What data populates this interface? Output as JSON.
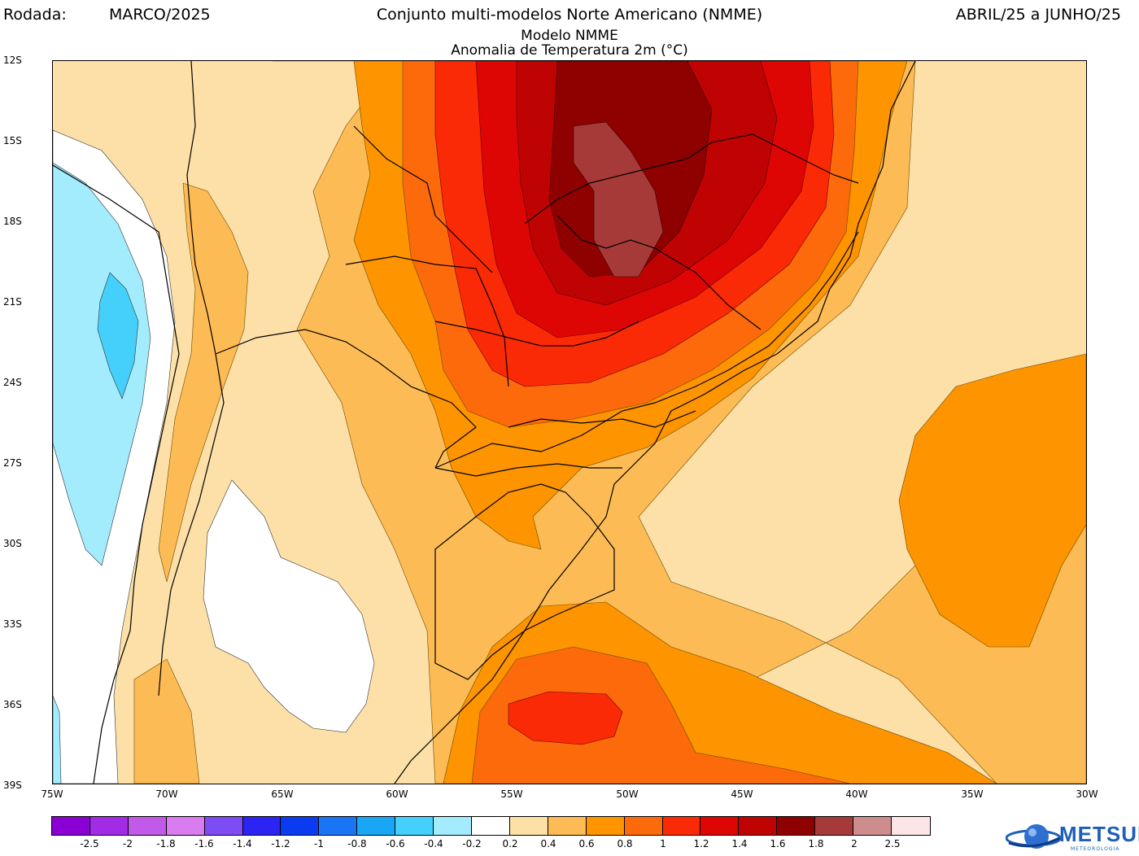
{
  "header": {
    "rodada_label": "Rodada:",
    "rodada_value": "MARCO/2025",
    "title": "Conjunto multi-modelos Norte Americano (NMME)",
    "period": "ABRIL/25 a JUNHO/25",
    "model": "Modelo NMME",
    "variable": "Anomalia de Temperatura 2m (°C)"
  },
  "axes": {
    "lat_labels": [
      "12S",
      "15S",
      "18S",
      "21S",
      "24S",
      "27S",
      "30S",
      "33S",
      "36S",
      "39S"
    ],
    "lon_labels": [
      "75W",
      "70W",
      "65W",
      "60W",
      "55W",
      "50W",
      "45W",
      "40W",
      "35W",
      "30W"
    ]
  },
  "colorbar": {
    "colors": [
      "#8a00d4",
      "#a22ce6",
      "#c15ae8",
      "#d87cef",
      "#7e4cf5",
      "#2b24f2",
      "#0b3bf0",
      "#1a74f6",
      "#19a6f5",
      "#45d0fb",
      "#a2ecfd",
      "#ffffff",
      "#fde0a8",
      "#fdbb55",
      "#fd9400",
      "#fc6a0c",
      "#fb2a06",
      "#de0505",
      "#bf0303",
      "#8f0000",
      "#a63a38",
      "#cc8d8c",
      "#fde4e6"
    ],
    "labels": [
      "-2.5",
      "-2",
      "-1.8",
      "-1.6",
      "-1.4",
      "-1.2",
      "-1",
      "-0.8",
      "-0.6",
      "-0.4",
      "-0.2",
      "0.2",
      "0.4",
      "0.6",
      "0.8",
      "1",
      "1.2",
      "1.4",
      "1.6",
      "1.8",
      "2",
      "2.5"
    ]
  },
  "logo": {
    "text": "METSUL",
    "subtext": "METEOROLOGIA"
  }
}
